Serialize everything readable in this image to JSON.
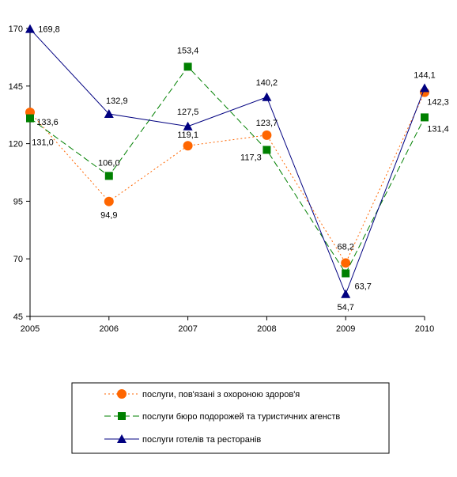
{
  "chart_data": {
    "type": "line",
    "title": "",
    "xlabel": "",
    "ylabel": "",
    "x": [
      "2005",
      "2006",
      "2007",
      "2008",
      "2009",
      "2010"
    ],
    "ylim": [
      45,
      170
    ],
    "yticks": [
      "45",
      "70",
      "95",
      "120",
      "145",
      "170"
    ],
    "grid": false,
    "legend": "bottom",
    "series": [
      {
        "name": "послуги, пов'язані з охороною здоров'я",
        "values": [
          133.6,
          94.9,
          119.1,
          123.7,
          68.2,
          142.3
        ],
        "labels": [
          "133,6",
          "94,9",
          "119,1",
          "123,7",
          "68,2",
          "142,3"
        ],
        "color": "#ff6600",
        "marker": "circle",
        "dash": "dotted"
      },
      {
        "name": "послуги бюро подорожей та туристичних агенств",
        "values": [
          131.0,
          106.0,
          153.4,
          117.3,
          63.7,
          131.4
        ],
        "labels": [
          "131,0",
          "106,0",
          "153,4",
          "117,3",
          "63,7",
          "131,4"
        ],
        "color": "#008000",
        "marker": "square",
        "dash": "dashed"
      },
      {
        "name": "послуги готелів та ресторанів",
        "values": [
          169.8,
          132.9,
          127.5,
          140.2,
          54.7,
          144.1
        ],
        "labels": [
          "169,8",
          "132,9",
          "127,5",
          "140,2",
          "54,7",
          "144,1"
        ],
        "color": "#000080",
        "marker": "triangle",
        "dash": "solid"
      }
    ]
  }
}
